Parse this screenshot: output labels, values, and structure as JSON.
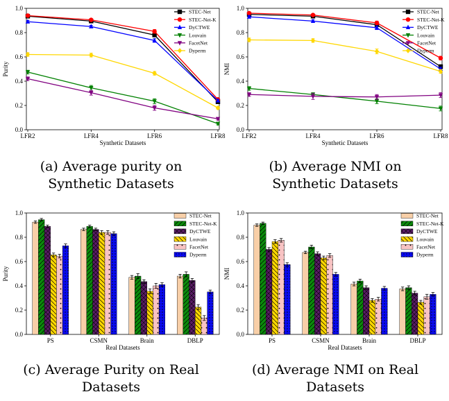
{
  "chart_data": [
    {
      "type": "line",
      "caption": [
        "(a) Average purity on",
        "Synthetic Datasets"
      ],
      "xlabel": "Synthetic Datasets",
      "ylabel": "Purity",
      "categories": [
        "LFR2",
        "LFR4",
        "LFR6",
        "LFR8"
      ],
      "ylim": [
        0,
        1
      ],
      "yticks": [
        "0.0",
        "0.2",
        "0.4",
        "0.6",
        "0.8",
        "1.0"
      ],
      "legend": "top-right",
      "series": [
        {
          "name": "STEC-Net",
          "color": "#000000",
          "marker": "square",
          "values": [
            0.935,
            0.895,
            0.78,
            0.23
          ],
          "err": [
            0.01,
            0.01,
            0.015,
            0.01
          ]
        },
        {
          "name": "STEC-Net-K",
          "color": "#ff0000",
          "marker": "circle",
          "values": [
            0.94,
            0.905,
            0.81,
            0.25
          ],
          "err": [
            0.01,
            0.01,
            0.015,
            0.01
          ]
        },
        {
          "name": "DyCTWE",
          "color": "#0000ff",
          "marker": "triangle-up",
          "values": [
            0.89,
            0.85,
            0.735,
            0.24
          ],
          "err": [
            0.01,
            0.01,
            0.015,
            0.01
          ]
        },
        {
          "name": "Louvain",
          "color": "#008000",
          "marker": "triangle-down",
          "values": [
            0.475,
            0.345,
            0.235,
            0.05
          ],
          "err": [
            0.015,
            0.02,
            0.02,
            0.01
          ]
        },
        {
          "name": "FacetNet",
          "color": "#800080",
          "marker": "triangle-down",
          "values": [
            0.42,
            0.305,
            0.18,
            0.09
          ],
          "err": [
            0.015,
            0.02,
            0.02,
            0.01
          ]
        },
        {
          "name": "Dyperm",
          "color": "#ffd700",
          "marker": "diamond",
          "values": [
            0.62,
            0.615,
            0.465,
            0.18
          ],
          "err": [
            0.015,
            0.015,
            0.015,
            0.01
          ]
        }
      ]
    },
    {
      "type": "line",
      "caption": [
        "(b) Average NMI on",
        "Synthetic Datasets"
      ],
      "xlabel": "Synthetic Datasets",
      "ylabel": "NMI",
      "categories": [
        "LFR2",
        "LFR4",
        "LFR6",
        "LFR8"
      ],
      "ylim": [
        0,
        1
      ],
      "yticks": [
        "0.0",
        "0.2",
        "0.4",
        "0.6",
        "0.8",
        "1.0"
      ],
      "legend": "top-right",
      "series": [
        {
          "name": "STEC-Net",
          "color": "#000000",
          "marker": "square",
          "values": [
            0.95,
            0.935,
            0.865,
            0.52
          ],
          "err": [
            0.01,
            0.01,
            0.015,
            0.015
          ]
        },
        {
          "name": "STEC-Net-K",
          "color": "#ff0000",
          "marker": "circle",
          "values": [
            0.96,
            0.945,
            0.88,
            0.59
          ],
          "err": [
            0.01,
            0.01,
            0.015,
            0.015
          ]
        },
        {
          "name": "DyCTWE",
          "color": "#0000ff",
          "marker": "triangle-up",
          "values": [
            0.93,
            0.895,
            0.84,
            0.5
          ],
          "err": [
            0.01,
            0.01,
            0.015,
            0.015
          ]
        },
        {
          "name": "Louvain",
          "color": "#008000",
          "marker": "triangle-down",
          "values": [
            0.34,
            0.29,
            0.235,
            0.175
          ],
          "err": [
            0.015,
            0.015,
            0.02,
            0.02
          ]
        },
        {
          "name": "FacetNet",
          "color": "#800080",
          "marker": "triangle-down",
          "values": [
            0.29,
            0.275,
            0.27,
            0.285
          ],
          "err": [
            0.015,
            0.025,
            0.02,
            0.02
          ]
        },
        {
          "name": "Dyperm",
          "color": "#ffd700",
          "marker": "diamond",
          "values": [
            0.74,
            0.735,
            0.645,
            0.48
          ],
          "err": [
            0.015,
            0.015,
            0.02,
            0.015
          ]
        }
      ]
    },
    {
      "type": "bar",
      "caption": [
        "(c) Average Purity on Real",
        "Datasets"
      ],
      "xlabel": "Real Datasets",
      "ylabel": "Purity",
      "categories": [
        "PS",
        "CSMN",
        "Brain",
        "DBLP"
      ],
      "ylim": [
        0,
        1
      ],
      "yticks": [
        "0.0",
        "0.2",
        "0.4",
        "0.6",
        "0.8",
        "1.0"
      ],
      "legend": "top-right",
      "series": [
        {
          "name": "STEC-Net",
          "color": "#f8cfa8",
          "hatch": "none",
          "values": [
            0.925,
            0.865,
            0.47,
            0.48
          ],
          "err": [
            0.01,
            0.01,
            0.015,
            0.015
          ]
        },
        {
          "name": "STEC-Net-K",
          "color": "#0b8a0b",
          "hatch": "diag",
          "values": [
            0.945,
            0.89,
            0.48,
            0.495
          ],
          "err": [
            0.01,
            0.01,
            0.02,
            0.02
          ]
        },
        {
          "name": "DyCTWE",
          "color": "#5a1c66",
          "hatch": "cross",
          "values": [
            0.89,
            0.865,
            0.435,
            0.445
          ],
          "err": [
            0.01,
            0.01,
            0.015,
            0.015
          ]
        },
        {
          "name": "Louvain",
          "color": "#ffd700",
          "hatch": "back",
          "values": [
            0.655,
            0.84,
            0.355,
            0.225
          ],
          "err": [
            0.015,
            0.015,
            0.02,
            0.02
          ]
        },
        {
          "name": "FacetNet",
          "color": "#f8c3c3",
          "hatch": "dots-sparse",
          "values": [
            0.645,
            0.84,
            0.4,
            0.135
          ],
          "err": [
            0.015,
            0.015,
            0.02,
            0.02
          ]
        },
        {
          "name": "Dyperm",
          "color": "#0a0af0",
          "hatch": "dots",
          "values": [
            0.73,
            0.83,
            0.41,
            0.35
          ],
          "err": [
            0.015,
            0.015,
            0.015,
            0.015
          ]
        }
      ]
    },
    {
      "type": "bar",
      "caption": [
        "(d) Average NMI on Real",
        "Datasets"
      ],
      "xlabel": "Real Datasets",
      "ylabel": "NMI",
      "categories": [
        "PS",
        "CSMN",
        "Brain",
        "DBLP"
      ],
      "ylim": [
        0,
        1
      ],
      "yticks": [
        "0.0",
        "0.2",
        "0.4",
        "0.6",
        "0.8",
        "1.0"
      ],
      "legend": "top-right",
      "series": [
        {
          "name": "STEC-Net",
          "color": "#f8cfa8",
          "hatch": "none",
          "values": [
            0.9,
            0.675,
            0.415,
            0.375
          ],
          "err": [
            0.01,
            0.01,
            0.015,
            0.015
          ]
        },
        {
          "name": "STEC-Net-K",
          "color": "#0b8a0b",
          "hatch": "diag",
          "values": [
            0.915,
            0.72,
            0.44,
            0.385
          ],
          "err": [
            0.01,
            0.015,
            0.015,
            0.015
          ]
        },
        {
          "name": "DyCTWE",
          "color": "#5a1c66",
          "hatch": "cross",
          "values": [
            0.7,
            0.665,
            0.385,
            0.34
          ],
          "err": [
            0.015,
            0.015,
            0.015,
            0.015
          ]
        },
        {
          "name": "Louvain",
          "color": "#ffd700",
          "hatch": "back",
          "values": [
            0.765,
            0.63,
            0.28,
            0.265
          ],
          "err": [
            0.015,
            0.015,
            0.015,
            0.015
          ]
        },
        {
          "name": "FacetNet",
          "color": "#f8c3c3",
          "hatch": "dots-sparse",
          "values": [
            0.775,
            0.65,
            0.29,
            0.31
          ],
          "err": [
            0.015,
            0.015,
            0.015,
            0.02
          ]
        },
        {
          "name": "Dyperm",
          "color": "#0a0af0",
          "hatch": "dots",
          "values": [
            0.575,
            0.495,
            0.38,
            0.33
          ],
          "err": [
            0.015,
            0.015,
            0.015,
            0.015
          ]
        }
      ]
    }
  ]
}
